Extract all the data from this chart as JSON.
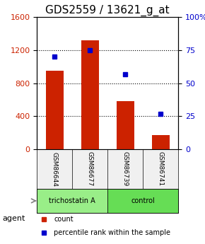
{
  "title": "GDS2559 / 13621_g_at",
  "samples": [
    "GSM86644",
    "GSM86677",
    "GSM86739",
    "GSM86741"
  ],
  "counts": [
    950,
    1320,
    580,
    170
  ],
  "percentiles": [
    70,
    75,
    57,
    27
  ],
  "ylim_left": [
    0,
    1600
  ],
  "ylim_right": [
    0,
    100
  ],
  "yticks_left": [
    0,
    400,
    800,
    1200,
    1600
  ],
  "yticks_right": [
    0,
    25,
    50,
    75,
    100
  ],
  "bar_color": "#cc2200",
  "dot_color": "#0000cc",
  "grid_color": "#000000",
  "agent_groups": [
    {
      "label": "trichostatin A",
      "indices": [
        0,
        1
      ],
      "color": "#99ee88"
    },
    {
      "label": "control",
      "indices": [
        2,
        3
      ],
      "color": "#66dd55"
    }
  ],
  "agent_label": "agent",
  "legend_count_label": "count",
  "legend_pct_label": "percentile rank within the sample",
  "bg_color": "#f0f0f0",
  "plot_bg": "#ffffff",
  "title_fontsize": 11,
  "axis_label_fontsize": 9,
  "tick_fontsize": 8
}
